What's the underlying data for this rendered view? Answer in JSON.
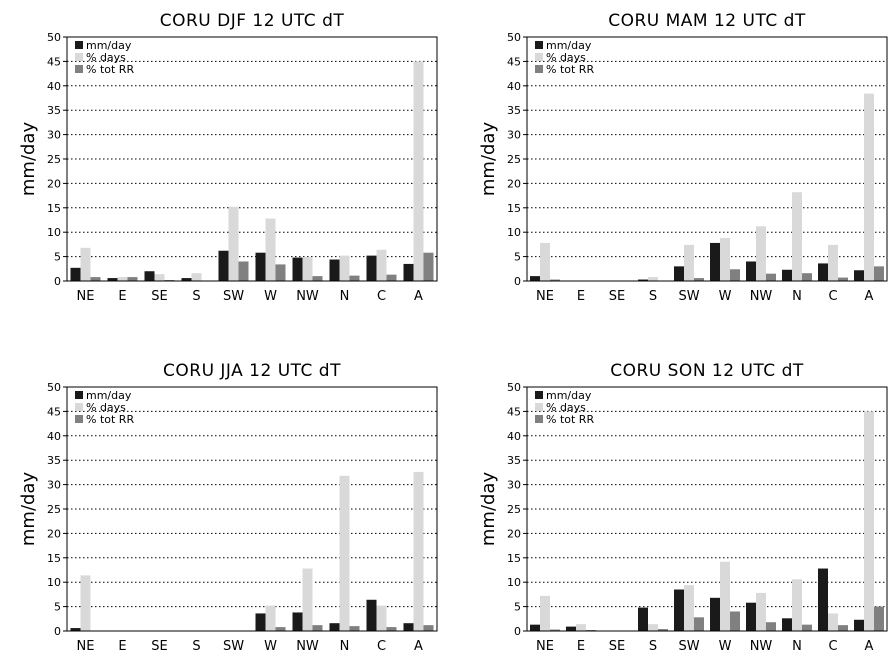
{
  "colors": {
    "mm_day": "#1a1a1a",
    "pct_days": "#d9d9d9",
    "pct_tot_rr": "#808080",
    "grid": "#000000"
  },
  "chart_data": [
    {
      "type": "bar",
      "title": "CORU DJF 12 UTC dT",
      "ylabel": "mm/day",
      "ylim": [
        0,
        50
      ],
      "yticks": [
        0,
        5,
        10,
        15,
        20,
        25,
        30,
        35,
        40,
        45,
        50
      ],
      "grid": "horizontal dotted",
      "legend": "top-left",
      "categories": [
        "NE",
        "E",
        "SE",
        "S",
        "SW",
        "W",
        "NW",
        "N",
        "C",
        "A"
      ],
      "series": [
        {
          "name": "mm/day",
          "values": [
            2.7,
            0.6,
            2.0,
            0.6,
            6.2,
            5.8,
            4.8,
            4.4,
            5.2,
            3.5
          ]
        },
        {
          "name": "% days",
          "values": [
            6.8,
            0.8,
            1.4,
            1.6,
            15.2,
            12.8,
            4.9,
            5.2,
            6.4,
            45.0
          ]
        },
        {
          "name": "% tot RR",
          "values": [
            0.8,
            0.8,
            0.2,
            0.1,
            4.0,
            3.4,
            1.0,
            1.1,
            1.3,
            5.8
          ]
        }
      ]
    },
    {
      "type": "bar",
      "title": "CORU MAM 12 UTC dT",
      "ylabel": "mm/day",
      "ylim": [
        0,
        50
      ],
      "yticks": [
        0,
        5,
        10,
        15,
        20,
        25,
        30,
        35,
        40,
        45,
        50
      ],
      "grid": "horizontal dotted",
      "legend": "top-left",
      "categories": [
        "NE",
        "E",
        "SE",
        "S",
        "SW",
        "W",
        "NW",
        "N",
        "C",
        "A"
      ],
      "series": [
        {
          "name": "mm/day",
          "values": [
            1.0,
            0,
            0,
            0.3,
            3.0,
            7.8,
            4.0,
            2.3,
            3.6,
            2.2
          ]
        },
        {
          "name": "% days",
          "values": [
            7.8,
            0,
            0,
            0.8,
            7.4,
            8.8,
            11.2,
            18.2,
            7.4,
            38.4
          ]
        },
        {
          "name": "% tot RR",
          "values": [
            0.3,
            0,
            0,
            0,
            0.6,
            2.4,
            1.5,
            1.6,
            0.7,
            3.0
          ]
        }
      ]
    },
    {
      "type": "bar",
      "title": "CORU JJA 12 UTC dT",
      "ylabel": "mm/day",
      "ylim": [
        0,
        50
      ],
      "yticks": [
        0,
        5,
        10,
        15,
        20,
        25,
        30,
        35,
        40,
        45,
        50
      ],
      "grid": "horizontal dotted",
      "legend": "top-left",
      "categories": [
        "NE",
        "E",
        "SE",
        "S",
        "SW",
        "W",
        "NW",
        "N",
        "C",
        "A"
      ],
      "series": [
        {
          "name": "mm/day",
          "values": [
            0.6,
            0,
            0,
            0,
            0,
            3.6,
            3.8,
            1.6,
            6.4,
            1.6
          ]
        },
        {
          "name": "% days",
          "values": [
            11.4,
            0,
            0,
            0,
            0,
            5.2,
            12.8,
            31.8,
            5.2,
            32.6
          ]
        },
        {
          "name": "% tot RR",
          "values": [
            0.1,
            0,
            0,
            0,
            0,
            0.8,
            1.2,
            1.0,
            0.8,
            1.2
          ]
        }
      ]
    },
    {
      "type": "bar",
      "title": "CORU SON 12 UTC dT",
      "ylabel": "mm/day",
      "ylim": [
        0,
        50
      ],
      "yticks": [
        0,
        5,
        10,
        15,
        20,
        25,
        30,
        35,
        40,
        45,
        50
      ],
      "grid": "horizontal dotted",
      "legend": "top-left",
      "categories": [
        "NE",
        "E",
        "SE",
        "S",
        "SW",
        "W",
        "NW",
        "N",
        "C",
        "A"
      ],
      "series": [
        {
          "name": "mm/day",
          "values": [
            1.3,
            0.9,
            0,
            4.8,
            8.5,
            6.8,
            5.8,
            2.6,
            12.8,
            2.3
          ]
        },
        {
          "name": "% days",
          "values": [
            7.2,
            1.4,
            0,
            1.4,
            9.4,
            14.2,
            7.8,
            10.6,
            3.6,
            45.0
          ]
        },
        {
          "name": "% tot RR",
          "values": [
            0.3,
            0.2,
            0,
            0.4,
            2.8,
            4.0,
            1.8,
            1.3,
            1.2,
            5.0
          ]
        }
      ]
    }
  ]
}
